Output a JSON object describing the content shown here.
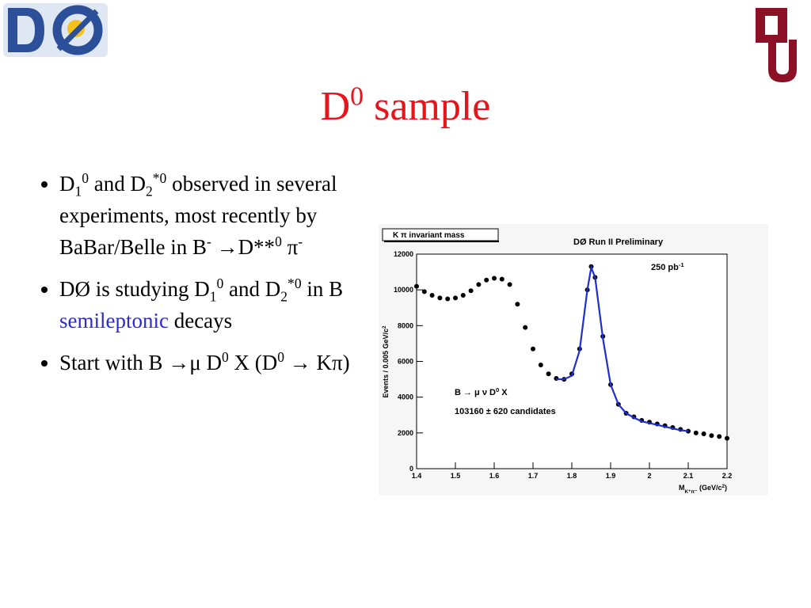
{
  "title": [
    "D",
    {
      "sup": "0"
    },
    " sample"
  ],
  "bullets": [
    [
      "D",
      {
        "sub": "1"
      },
      {
        "sup": "0"
      },
      "  and D",
      {
        "sub": "2"
      },
      {
        "sup": "*0"
      },
      " observed in several experiments, most recently by BaBar/Belle in B",
      {
        "sup": "-"
      },
      " →D**",
      {
        "sup": "0"
      },
      " π",
      {
        "sup": "-"
      }
    ],
    [
      "DØ is studying D",
      {
        "sub": "1"
      },
      {
        "sup": "0"
      },
      " and D",
      {
        "sub": "2"
      },
      {
        "sup": "*0"
      },
      " in B ",
      {
        "hl": "semileptonic"
      },
      " decays"
    ],
    [
      "Start with B →μ D",
      {
        "sup": "0"
      },
      " X (D",
      {
        "sup": "0"
      },
      " → Kπ)"
    ]
  ],
  "chart_data": {
    "type": "scatter",
    "title": [
      {
        "box": "K π invariant mass"
      }
    ],
    "subtitle": [
      "DØ  Run II Preliminary"
    ],
    "annotations": [
      [
        "250 pb",
        {
          "sup": "-1"
        }
      ],
      [
        "B → μ ν D",
        {
          "sup": "0"
        },
        " X"
      ],
      [
        "103160 ± 620 candidates"
      ]
    ],
    "x_label": [
      "M",
      {
        "sub": "K⁺π⁻"
      },
      "  (GeV/c",
      {
        "sup": "2"
      },
      ")"
    ],
    "y_label": [
      "Events / 0.005 GeV/c",
      {
        "sup": "2"
      }
    ],
    "xlim": [
      1.4,
      2.2
    ],
    "ylim": [
      0,
      12000
    ],
    "xticks": [
      1.4,
      1.5,
      1.6,
      1.7,
      1.8,
      1.9,
      2,
      2.1,
      2.2
    ],
    "yticks": [
      0,
      2000,
      4000,
      6000,
      8000,
      10000,
      12000
    ],
    "series": [
      {
        "mark": "dot",
        "color": "#000000",
        "x": [
          1.4,
          1.42,
          1.44,
          1.46,
          1.48,
          1.5,
          1.52,
          1.54,
          1.56,
          1.58,
          1.6,
          1.62,
          1.64,
          1.66,
          1.68,
          1.7,
          1.72,
          1.74,
          1.76,
          1.78,
          1.8,
          1.82,
          1.84,
          1.85,
          1.86,
          1.88,
          1.9,
          1.92,
          1.94,
          1.96,
          1.98,
          2.0,
          2.02,
          2.04,
          2.06,
          2.08,
          2.1,
          2.12,
          2.14,
          2.16,
          2.18,
          2.2
        ],
        "values": [
          10200,
          9900,
          9700,
          9550,
          9500,
          9550,
          9700,
          9950,
          10300,
          10550,
          10650,
          10600,
          10300,
          9200,
          7900,
          6700,
          5800,
          5300,
          5050,
          5000,
          5300,
          6700,
          10000,
          11300,
          10700,
          7400,
          4700,
          3600,
          3100,
          2900,
          2700,
          2600,
          2500,
          2400,
          2300,
          2200,
          2100,
          2000,
          1950,
          1850,
          1800,
          1700
        ]
      },
      {
        "mark": "line",
        "color": "#1e2ed0",
        "x": [
          1.76,
          1.78,
          1.8,
          1.82,
          1.84,
          1.85,
          1.86,
          1.88,
          1.9,
          1.92,
          1.94,
          1.96,
          1.98,
          2.0,
          2.02,
          2.04,
          2.06,
          2.08,
          2.1
        ],
        "values": [
          5000,
          5000,
          5200,
          6600,
          10000,
          11250,
          10700,
          7300,
          4700,
          3600,
          3100,
          2850,
          2650,
          2550,
          2450,
          2350,
          2250,
          2150,
          2100
        ]
      }
    ]
  }
}
